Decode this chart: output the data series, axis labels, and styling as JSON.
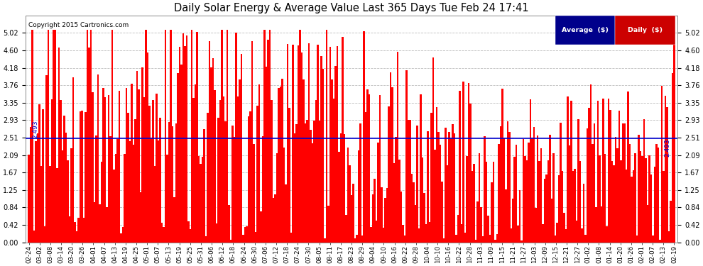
{
  "title": "Daily Solar Energy & Average Value Last 365 Days Tue Feb 24 17:41",
  "copyright": "Copyright 2015 Cartronics.com",
  "average_value": 2.493,
  "average_label": "2.493",
  "bar_color": "#FF0000",
  "average_line_color": "#0000CD",
  "background_color": "#FFFFFF",
  "plot_bg_color": "#FFFFFF",
  "grid_color": "#BBBBBB",
  "ylim": [
    0.0,
    5.44
  ],
  "yticks": [
    0.0,
    0.42,
    0.84,
    1.25,
    1.67,
    2.09,
    2.51,
    2.93,
    3.35,
    3.76,
    4.18,
    4.6,
    5.02
  ],
  "legend_avg_color": "#00008B",
  "legend_daily_color": "#CC0000",
  "legend_avg_text": "Average  ($)",
  "legend_daily_text": "Daily  ($)",
  "x_tick_labels": [
    "02-24",
    "03-02",
    "03-08",
    "03-14",
    "03-20",
    "03-26",
    "04-01",
    "04-07",
    "04-13",
    "04-19",
    "04-25",
    "05-01",
    "05-07",
    "05-13",
    "05-19",
    "05-25",
    "05-31",
    "06-06",
    "06-12",
    "06-18",
    "06-24",
    "06-30",
    "07-06",
    "07-12",
    "07-18",
    "07-24",
    "07-30",
    "08-05",
    "08-11",
    "08-17",
    "08-23",
    "08-29",
    "09-04",
    "09-10",
    "09-16",
    "09-22",
    "09-28",
    "10-04",
    "10-10",
    "10-16",
    "10-22",
    "10-28",
    "11-03",
    "11-09",
    "11-15",
    "11-21",
    "11-27",
    "12-03",
    "12-09",
    "12-15",
    "12-21",
    "12-27",
    "01-02",
    "01-08",
    "01-14",
    "01-20",
    "01-26",
    "02-01",
    "02-07",
    "02-13",
    "02-19"
  ],
  "num_bars": 365,
  "seed": 42,
  "figwidth": 9.9,
  "figheight": 3.75,
  "dpi": 100
}
